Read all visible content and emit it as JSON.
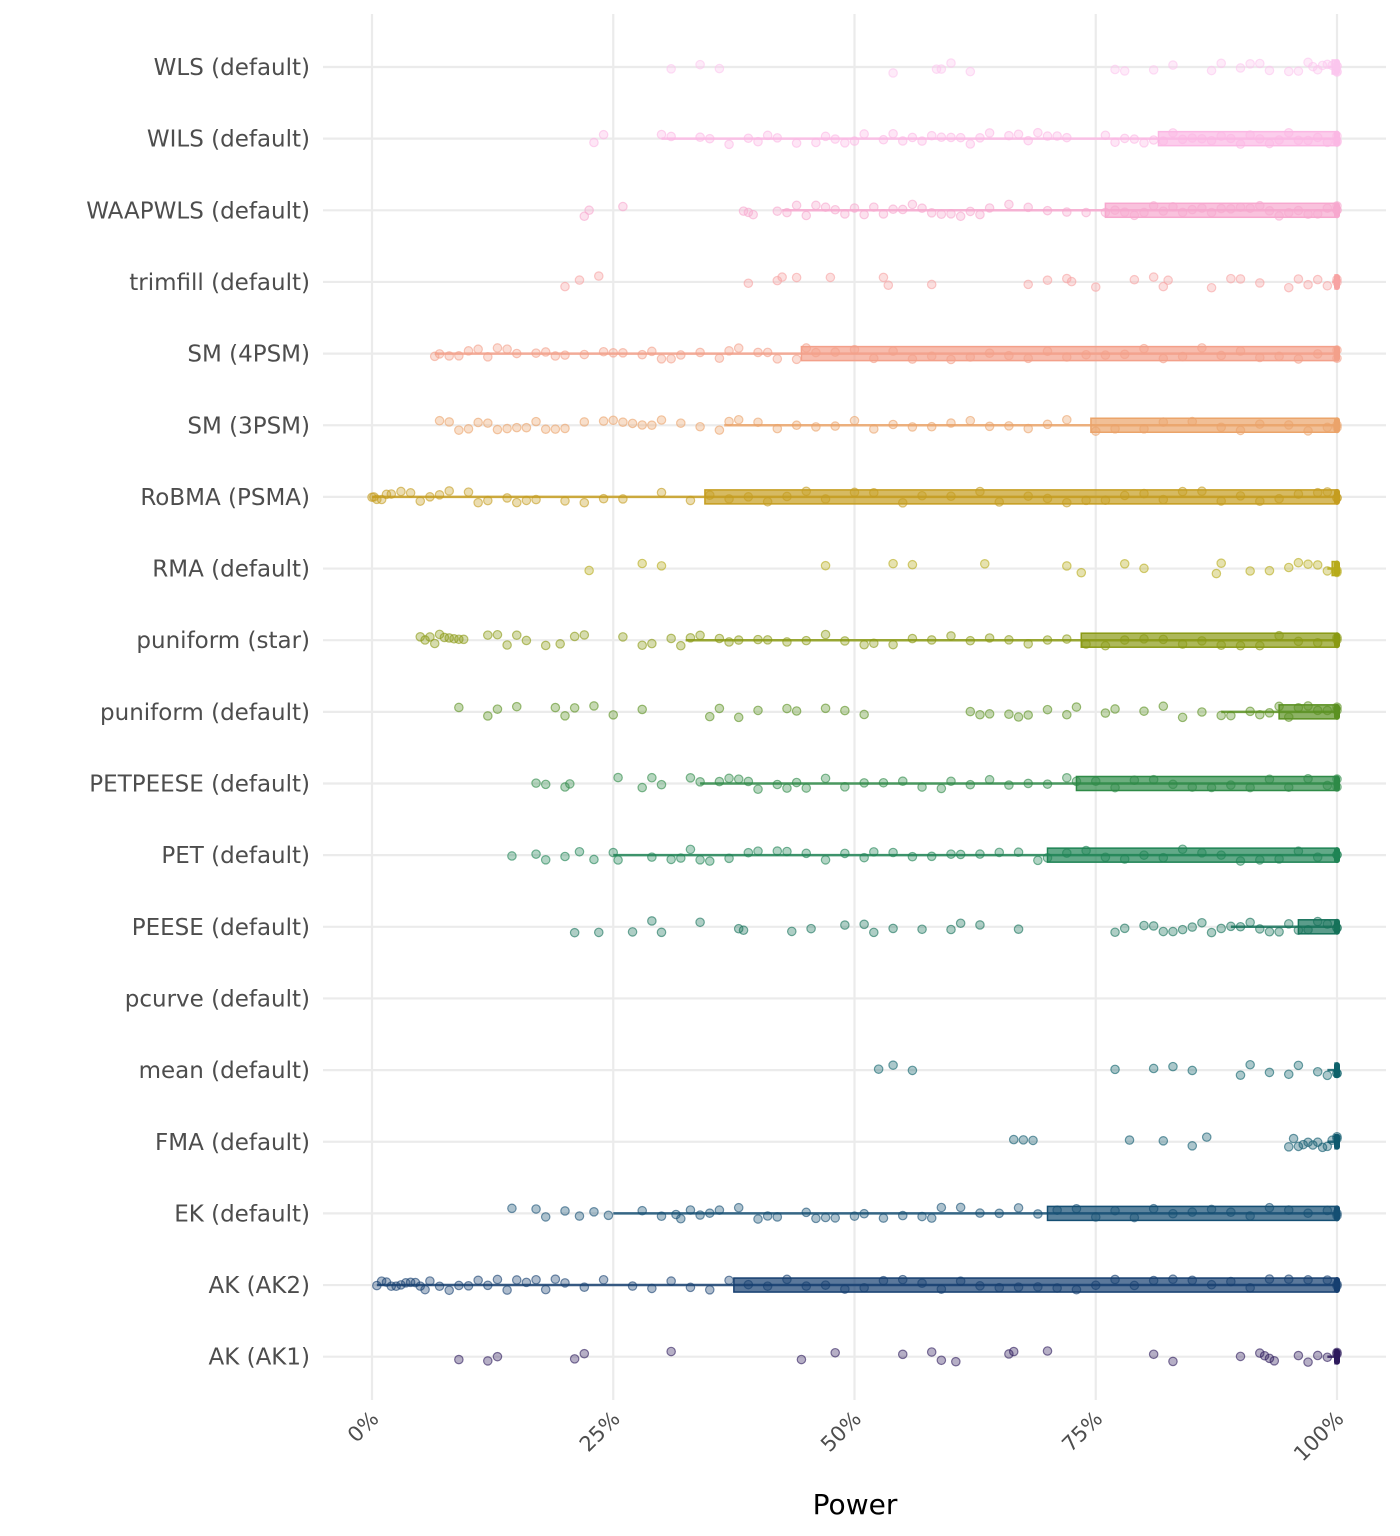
{
  "chart_data": {
    "type": "scatter",
    "subtype": "horizontal jitter + boxplot (raincloud-style) per method",
    "title": "",
    "xlabel": "Power",
    "ylabel": "",
    "xlim": [
      0,
      100
    ],
    "x_unit": "%",
    "x_ticks": [
      "0%",
      "25%",
      "50%",
      "75%",
      "100%"
    ],
    "x_tick_values": [
      0,
      25,
      50,
      75,
      100
    ],
    "grid": true,
    "legend": "none",
    "categories": [
      "WLS (default)",
      "WILS (default)",
      "WAAPWLS (default)",
      "trimfill (default)",
      "SM (4PSM)",
      "SM (3PSM)",
      "RoBMA (PSMA)",
      "RMA (default)",
      "puniform (star)",
      "puniform (default)",
      "PETPEESE (default)",
      "PET (default)",
      "PEESE (default)",
      "pcurve (default)",
      "mean (default)",
      "FMA (default)",
      "EK (default)",
      "AK (AK2)",
      "AK (AK1)"
    ],
    "series": [
      {
        "name": "WLS (default)",
        "color": "#fbc6ee",
        "box": {
          "whisker_low": 99,
          "q1": 99.5,
          "median": 100,
          "q3": 100,
          "whisker_high": 100
        },
        "points": [
          31,
          34,
          36,
          54,
          58.5,
          59,
          60,
          62,
          77,
          78,
          81,
          83,
          87,
          88,
          90,
          91,
          92,
          93,
          95,
          96,
          97,
          97.5,
          98,
          98.5,
          99,
          99.5,
          100,
          100,
          100,
          100
        ]
      },
      {
        "name": "WILS (default)",
        "color": "#fbb8e4",
        "box": {
          "whisker_low": 30,
          "q1": 81.5,
          "median": 100,
          "q3": 100,
          "whisker_high": 100
        },
        "points": [
          23,
          24,
          30,
          31,
          34,
          35,
          37,
          39,
          40,
          41,
          42,
          44,
          46,
          47,
          48,
          49,
          50,
          51,
          53,
          54,
          55,
          56,
          57,
          58,
          59,
          60,
          61,
          62,
          63,
          64,
          66,
          67,
          68,
          69,
          70,
          71,
          72,
          76,
          77,
          78,
          79,
          80,
          81,
          82,
          83,
          84,
          85,
          86,
          87,
          88,
          89,
          90,
          91,
          92,
          93,
          94,
          95,
          96,
          97,
          98,
          99,
          100,
          100,
          100
        ]
      },
      {
        "name": "WAAPWLS (default)",
        "color": "#f7a8cf",
        "box": {
          "whisker_low": 42.5,
          "q1": 76,
          "median": 100,
          "q3": 100,
          "whisker_high": 100
        },
        "points": [
          22,
          22.5,
          26,
          38.5,
          39,
          39.5,
          42,
          43,
          44,
          45,
          46,
          47,
          48,
          49,
          50,
          51,
          52,
          53,
          54,
          55,
          56,
          57,
          58,
          59,
          60,
          61,
          62,
          63,
          64,
          66,
          68,
          70,
          72,
          74,
          76,
          77,
          78,
          79,
          80,
          81,
          82,
          83,
          84,
          85,
          86,
          87,
          88,
          89,
          90,
          91,
          92,
          93,
          94,
          95,
          96,
          97,
          98,
          99,
          100,
          100,
          100
        ]
      },
      {
        "name": "trimfill (default)",
        "color": "#f7a3a3",
        "box": {
          "whisker_low": 99.5,
          "q1": 99.8,
          "median": 100,
          "q3": 100,
          "whisker_high": 100
        },
        "points": [
          20,
          21.5,
          23.5,
          39,
          42,
          42.5,
          44,
          47.5,
          53,
          53.5,
          58,
          68,
          70,
          72,
          72.5,
          75,
          79,
          81,
          82,
          82.5,
          87,
          89,
          90,
          92,
          95,
          96,
          97,
          98,
          99,
          100,
          100
        ]
      },
      {
        "name": "SM (4PSM)",
        "color": "#f3a08a",
        "box": {
          "whisker_low": 6.5,
          "q1": 44.5,
          "median": 100,
          "q3": 100,
          "whisker_high": 100
        },
        "points": [
          6.5,
          7,
          8,
          9,
          10,
          11,
          12,
          13,
          14,
          15,
          17,
          18,
          19,
          20,
          22,
          24,
          25,
          26,
          28,
          29,
          30,
          31,
          32,
          34,
          36,
          37,
          38,
          40,
          41,
          42,
          44,
          45,
          46,
          48,
          50,
          52,
          54,
          56,
          58,
          60,
          62,
          64,
          66,
          68,
          70,
          72,
          74,
          76,
          78,
          80,
          82,
          84,
          86,
          88,
          90,
          92,
          94,
          96,
          98,
          100,
          100
        ]
      },
      {
        "name": "SM (3PSM)",
        "color": "#eba46a",
        "box": {
          "whisker_low": 36.5,
          "q1": 74.5,
          "median": 100,
          "q3": 100,
          "whisker_high": 100
        },
        "points": [
          7,
          8,
          9,
          10,
          11,
          12,
          13,
          14,
          15,
          16,
          17,
          18,
          19,
          20,
          22,
          24,
          25,
          26,
          27,
          28,
          29,
          30,
          32,
          34,
          36,
          37,
          38,
          40,
          42,
          44,
          46,
          48,
          50,
          52,
          54,
          56,
          58,
          60,
          62,
          64,
          66,
          68,
          70,
          72,
          75,
          77,
          80,
          82,
          85,
          88,
          90,
          92,
          95,
          97,
          99,
          100,
          100
        ]
      },
      {
        "name": "RoBMA (PSMA)",
        "color": "#c59d1f",
        "box": {
          "whisker_low": 0,
          "q1": 34.5,
          "median": 100,
          "q3": 100,
          "whisker_high": 100
        },
        "points": [
          0,
          0.2,
          0.5,
          1,
          1.5,
          2,
          3,
          4,
          5,
          6,
          7,
          8,
          10,
          11,
          12,
          14,
          15,
          16,
          17,
          20,
          22,
          24,
          26,
          30,
          33,
          35,
          37,
          39,
          41,
          43,
          45,
          47,
          50,
          52,
          55,
          57,
          60,
          63,
          65,
          68,
          70,
          72,
          74,
          76,
          78,
          80,
          82,
          84,
          86,
          88,
          90,
          92,
          94,
          96,
          98,
          99,
          100,
          100
        ]
      },
      {
        "name": "RMA (default)",
        "color": "#b7ab1a",
        "box": {
          "whisker_low": 99,
          "q1": 99.5,
          "median": 100,
          "q3": 100,
          "whisker_high": 100
        },
        "points": [
          22.5,
          28,
          30,
          47,
          54,
          56,
          63.5,
          72,
          73.5,
          78,
          80,
          87.5,
          88,
          91,
          93,
          95,
          96,
          97,
          98,
          99,
          100,
          100
        ]
      },
      {
        "name": "puniform (star)",
        "color": "#8a9a14",
        "box": {
          "whisker_low": 32.5,
          "q1": 73.5,
          "median": 100,
          "q3": 100,
          "whisker_high": 100
        },
        "points": [
          5,
          5.5,
          6,
          6.5,
          7,
          7.5,
          8,
          8.5,
          9,
          9.5,
          12,
          13,
          14,
          15,
          16,
          18,
          19.5,
          21,
          22,
          26,
          28,
          29,
          31,
          32,
          33,
          34,
          36,
          37,
          38,
          40,
          41,
          43,
          45,
          47,
          49,
          51,
          52,
          54,
          56,
          58,
          60,
          62,
          64,
          66,
          68,
          70,
          72,
          74,
          76,
          78,
          80,
          82,
          84,
          86,
          88,
          90,
          92,
          94,
          96,
          98,
          100,
          100
        ]
      },
      {
        "name": "puniform (default)",
        "color": "#5b9122",
        "box": {
          "whisker_low": 88,
          "q1": 94,
          "median": 100,
          "q3": 100,
          "whisker_high": 100
        },
        "points": [
          9,
          12,
          13,
          15,
          19,
          20,
          21,
          23,
          25,
          28,
          35,
          36,
          38,
          40,
          43,
          44,
          47,
          49,
          51,
          62,
          63,
          64,
          66,
          67,
          68,
          70,
          72,
          73,
          76,
          77,
          80,
          82,
          84,
          86,
          88,
          89,
          91,
          92,
          93,
          94,
          95,
          96,
          97,
          98,
          99,
          100,
          100
        ]
      },
      {
        "name": "PETPEESE (default)",
        "color": "#2e8a47",
        "box": {
          "whisker_low": 34,
          "q1": 73,
          "median": 100,
          "q3": 100,
          "whisker_high": 100
        },
        "points": [
          17,
          18,
          20,
          20.5,
          25.5,
          28,
          29,
          30,
          33,
          34,
          36,
          37,
          38,
          39,
          40,
          42,
          43,
          44,
          45,
          47,
          49,
          51,
          53,
          55,
          57,
          59,
          60,
          62,
          64,
          66,
          68,
          70,
          72,
          73,
          75,
          77,
          79,
          81,
          83,
          85,
          87,
          89,
          91,
          93,
          95,
          97,
          99,
          100,
          100
        ]
      },
      {
        "name": "PET (default)",
        "color": "#1f8455",
        "box": {
          "whisker_low": 25,
          "q1": 70,
          "median": 100,
          "q3": 100,
          "whisker_high": 100
        },
        "points": [
          14.5,
          17,
          18,
          20,
          21.5,
          23,
          25,
          25.5,
          29,
          31,
          32,
          33,
          34,
          35,
          37,
          39,
          40,
          42,
          43,
          45,
          47,
          49,
          51,
          52,
          54,
          56,
          58,
          60,
          61,
          63,
          65,
          67,
          69,
          70,
          72,
          74,
          76,
          78,
          80,
          82,
          84,
          86,
          88,
          90,
          92,
          94,
          96,
          98,
          100,
          100
        ]
      },
      {
        "name": "PEESE (default)",
        "color": "#16725a",
        "box": {
          "whisker_low": 89,
          "q1": 96,
          "median": 100,
          "q3": 100,
          "whisker_high": 100
        },
        "points": [
          21,
          23.5,
          27,
          29,
          30,
          34,
          38,
          38.5,
          43.5,
          45.5,
          49,
          51,
          52,
          54,
          57,
          60,
          61,
          63,
          67,
          77,
          78,
          80,
          81,
          82,
          83,
          84,
          85,
          86,
          87,
          88,
          89,
          90,
          91,
          92,
          93,
          94,
          95,
          96,
          97,
          98,
          99,
          100,
          100
        ]
      },
      {
        "name": "pcurve (default)",
        "color": "#0f6b66",
        "box": null,
        "points": []
      },
      {
        "name": "mean (default)",
        "color": "#0e626b",
        "box": {
          "whisker_low": 99,
          "q1": 99.8,
          "median": 100,
          "q3": 100,
          "whisker_high": 100
        },
        "points": [
          52.5,
          54,
          56,
          77,
          81,
          83,
          85,
          90,
          91,
          93,
          95,
          96,
          98,
          99,
          100,
          100
        ]
      },
      {
        "name": "FMA (default)",
        "color": "#0f5a6e",
        "box": {
          "whisker_low": 99,
          "q1": 99.8,
          "median": 100,
          "q3": 100,
          "whisker_high": 100
        },
        "points": [
          66.5,
          67.5,
          68.5,
          78.5,
          82,
          85,
          86.5,
          95,
          95.5,
          96,
          96.5,
          97,
          97.5,
          98,
          98.5,
          99,
          99.5,
          100,
          100
        ]
      },
      {
        "name": "EK (default)",
        "color": "#154f73",
        "box": {
          "whisker_low": 25,
          "q1": 70,
          "median": 100,
          "q3": 100,
          "whisker_high": 100
        },
        "points": [
          14.5,
          17,
          18,
          20,
          21.5,
          23,
          24.5,
          28,
          30,
          31.5,
          32,
          33,
          34,
          35,
          36,
          38,
          40,
          41,
          42,
          45,
          46,
          47,
          48,
          50,
          51,
          53,
          55,
          57,
          58,
          59,
          61,
          63,
          65,
          67,
          69,
          71,
          73,
          75,
          77,
          79,
          81,
          83,
          85,
          87,
          89,
          91,
          93,
          95,
          97,
          99,
          100,
          100
        ]
      },
      {
        "name": "AK (AK2)",
        "color": "#163f70",
        "box": {
          "whisker_low": 0.5,
          "q1": 37.5,
          "median": 100,
          "q3": 100,
          "whisker_high": 100
        },
        "points": [
          0.5,
          1,
          1.5,
          2,
          2.5,
          3,
          3.5,
          4,
          4.5,
          5,
          5.5,
          6,
          7,
          8,
          9,
          10,
          11,
          12,
          13,
          14,
          15,
          16,
          17,
          18,
          19,
          20,
          22,
          24,
          27,
          29,
          31,
          33,
          35,
          37,
          39,
          41,
          43,
          45,
          47,
          49,
          51,
          53,
          55,
          57,
          59,
          61,
          63,
          65,
          67,
          69,
          71,
          73,
          75,
          77,
          79,
          81,
          83,
          85,
          87,
          89,
          91,
          93,
          95,
          97,
          99,
          100,
          100
        ]
      },
      {
        "name": "AK (AK1)",
        "color": "#2d1a5c",
        "box": {
          "whisker_low": 99,
          "q1": 99.8,
          "median": 100,
          "q3": 100,
          "whisker_high": 100
        },
        "points": [
          9,
          12,
          13,
          21,
          22,
          31,
          44.5,
          48,
          55,
          58,
          59,
          60.5,
          66,
          66.5,
          70,
          81,
          83,
          90,
          92,
          92.5,
          93,
          93.5,
          96,
          97,
          98,
          99,
          100,
          100
        ]
      }
    ]
  }
}
